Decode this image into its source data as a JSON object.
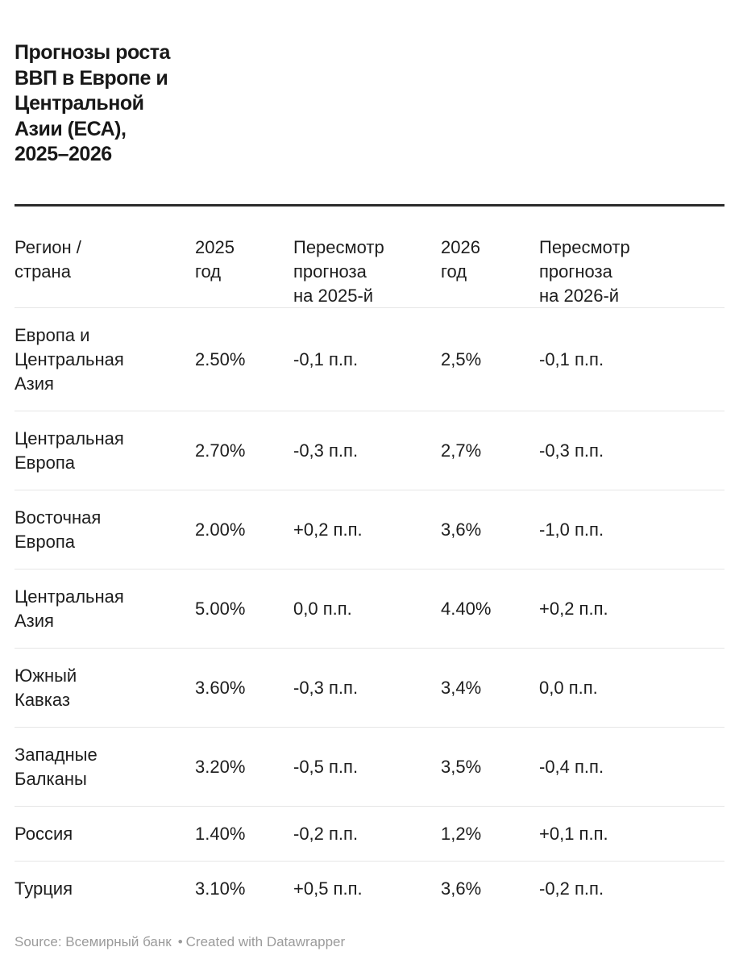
{
  "chart_data": {
    "type": "table",
    "title": "Прогнозы роста ВВП в Европе и Центральной Азии (ЕСА), 2025–2026",
    "columns": [
      "Регион / страна",
      "2025 год",
      "Пересмотр прогноза на 2025-й",
      "2026 год",
      "Пересмотр прогноза на 2026-й"
    ],
    "rows": [
      [
        "Европа и Центральная Азия",
        "2.50%",
        "-0,1 п.п.",
        "2,5%",
        "-0,1 п.п."
      ],
      [
        "Центральная Европа",
        "2.70%",
        "-0,3 п.п.",
        "2,7%",
        "-0,3 п.п."
      ],
      [
        "Восточная Европа",
        "2.00%",
        "+0,2 п.п.",
        "3,6%",
        "-1,0 п.п."
      ],
      [
        "Центральная Азия",
        "5.00%",
        "0,0 п.п.",
        "4.40%",
        "+0,2 п.п."
      ],
      [
        "Южный Кавказ",
        "3.60%",
        "-0,3 п.п.",
        "3,4%",
        "0,0 п.п."
      ],
      [
        "Западные Балканы",
        "3.20%",
        "-0,5 п.п.",
        "3,5%",
        "-0,4 п.п."
      ],
      [
        "Россия",
        "1.40%",
        "-0,2 п.п.",
        "1,2%",
        "+0,1 п.п."
      ],
      [
        "Турция",
        "3.10%",
        "+0,5 п.п.",
        "3,6%",
        "-0,2 п.п."
      ]
    ]
  },
  "display": {
    "title": "Прогнозы\nроста ВВП в\nЕвропе и\nЦентральной\nАзии (ЕСА),\n2025–2026",
    "header": [
      "Регион /\nстрана",
      "2025\nгод",
      "Пересмотр\nпрогноза\nна 2025-й",
      "2026\nгод",
      "Пересмотр\nпрогноза\nна 2026-й"
    ],
    "region_labels": [
      "Европа и\nЦентральная\nАзия",
      "Центральная\nЕвропа",
      "Восточная\nЕвропа",
      "Центральная\nАзия",
      "Южный\nКавказ",
      "Западные\nБалканы",
      "Россия",
      "Турция"
    ]
  },
  "footer": {
    "source": "Source: Всемирный банк",
    "credit": "Created with Datawrapper"
  }
}
